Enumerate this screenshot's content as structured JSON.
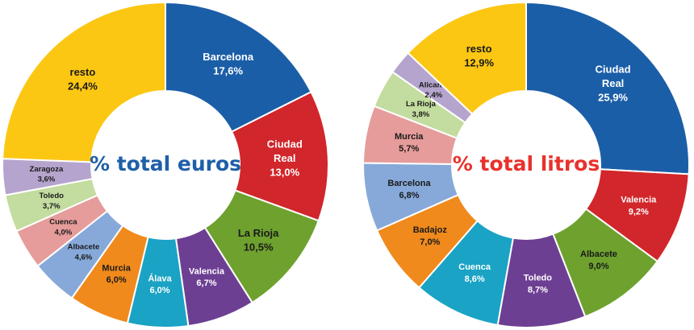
{
  "colors": {
    "euros_title": "#1f5fa8",
    "litros_title": "#e8322c",
    "label_light": "#ffffff",
    "label_dark": "#1a1a1a"
  },
  "chart_data": [
    {
      "type": "pie",
      "title": "% total euros",
      "slices": [
        {
          "label": [
            "Barcelona"
          ],
          "value_text": "17,6%",
          "value": 17.6,
          "color": "#1b5ea8",
          "text": "light"
        },
        {
          "label": [
            "Ciudad",
            "Real"
          ],
          "value_text": "13,0%",
          "value": 13.0,
          "color": "#d1262b",
          "text": "light"
        },
        {
          "label": [
            "La Rioja"
          ],
          "value_text": "10,5%",
          "value": 10.5,
          "color": "#6ea12e",
          "text": "dark"
        },
        {
          "label": [
            "Valencia"
          ],
          "value_text": "6,7%",
          "value": 6.7,
          "color": "#6d3f93",
          "text": "light"
        },
        {
          "label": [
            "Álava"
          ],
          "value_text": "6,0%",
          "value": 6.0,
          "color": "#1aa3c4",
          "text": "light"
        },
        {
          "label": [
            "Murcia"
          ],
          "value_text": "6,0%",
          "value": 6.0,
          "color": "#f08a1c",
          "text": "dark"
        },
        {
          "label": [
            "Albacete"
          ],
          "value_text": "4,6%",
          "value": 4.6,
          "color": "#86a9d9",
          "text": "dark"
        },
        {
          "label": [
            "Cuenca"
          ],
          "value_text": "4,0%",
          "value": 4.0,
          "color": "#e59c9a",
          "text": "dark"
        },
        {
          "label": [
            "Toledo"
          ],
          "value_text": "3,7%",
          "value": 3.7,
          "color": "#c3dc9f",
          "text": "dark"
        },
        {
          "label": [
            "Zaragoza"
          ],
          "value_text": "3,6%",
          "value": 3.6,
          "color": "#b5a4cd",
          "text": "dark"
        },
        {
          "label": [
            "resto"
          ],
          "value_text": "24,4%",
          "value": 24.4,
          "color": "#fcc713",
          "text": "dark"
        }
      ]
    },
    {
      "type": "pie",
      "title": "% total litros",
      "slices": [
        {
          "label": [
            "Ciudad",
            "Real"
          ],
          "value_text": "25,9%",
          "value": 25.9,
          "color": "#1b5ea8",
          "text": "light"
        },
        {
          "label": [
            "Valencia"
          ],
          "value_text": "9,2%",
          "value": 9.2,
          "color": "#d1262b",
          "text": "light"
        },
        {
          "label": [
            "Albacete"
          ],
          "value_text": "9,0%",
          "value": 9.0,
          "color": "#6ea12e",
          "text": "dark"
        },
        {
          "label": [
            "Toledo"
          ],
          "value_text": "8,7%",
          "value": 8.7,
          "color": "#6d3f93",
          "text": "light"
        },
        {
          "label": [
            "Cuenca"
          ],
          "value_text": "8,6%",
          "value": 8.6,
          "color": "#1aa3c4",
          "text": "light"
        },
        {
          "label": [
            "Badajoz"
          ],
          "value_text": "7,0%",
          "value": 7.0,
          "color": "#f08a1c",
          "text": "dark"
        },
        {
          "label": [
            "Barcelona"
          ],
          "value_text": "6,8%",
          "value": 6.8,
          "color": "#86a9d9",
          "text": "dark"
        },
        {
          "label": [
            "Murcia"
          ],
          "value_text": "5,7%",
          "value": 5.7,
          "color": "#e59c9a",
          "text": "dark"
        },
        {
          "label": [
            "La Rioja"
          ],
          "value_text": "3,8%",
          "value": 3.8,
          "color": "#c3dc9f",
          "text": "dark"
        },
        {
          "label": [
            "Alicante"
          ],
          "value_text": "2,4%",
          "value": 2.4,
          "color": "#b5a4cd",
          "text": "dark"
        },
        {
          "label": [
            "resto"
          ],
          "value_text": "12,9%",
          "value": 12.9,
          "color": "#fcc713",
          "text": "dark"
        }
      ]
    }
  ]
}
